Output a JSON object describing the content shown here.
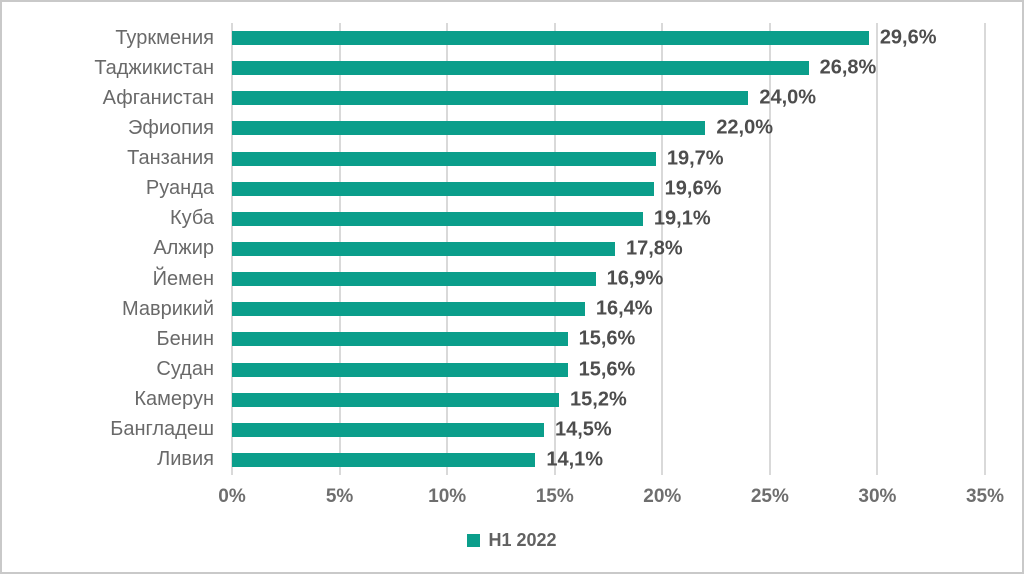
{
  "chart_data": {
    "type": "bar",
    "orientation": "horizontal",
    "title": "",
    "xlabel": "",
    "ylabel": "",
    "categories": [
      "Туркмения",
      "Таджикистан",
      "Афганистан",
      "Эфиопия",
      "Танзания",
      "Руанда",
      "Куба",
      "Алжир",
      "Йемен",
      "Маврикий",
      "Бенин",
      "Судан",
      "Камерун",
      "Бангладеш",
      "Ливия"
    ],
    "values": [
      29.6,
      26.8,
      24.0,
      22.0,
      19.7,
      19.6,
      19.1,
      17.8,
      16.9,
      16.4,
      15.6,
      15.6,
      15.2,
      14.5,
      14.1
    ],
    "value_labels": [
      "29,6%",
      "26,8%",
      "24,0%",
      "22,0%",
      "19,7%",
      "19,6%",
      "19,1%",
      "17,8%",
      "16,9%",
      "16,4%",
      "15,6%",
      "15,6%",
      "15,2%",
      "14,5%",
      "14,1%"
    ],
    "x_ticks_labels": [
      "0%",
      "5%",
      "10%",
      "15%",
      "20%",
      "25%",
      "30%",
      "35%"
    ],
    "x_ticks_values": [
      0,
      5,
      10,
      15,
      20,
      25,
      30,
      35
    ],
    "xlim": [
      0,
      35
    ],
    "grid": "vertical-on",
    "legend_position": "bottom-center",
    "legend": [
      {
        "label": "H1 2022",
        "color": "#0b9e8b"
      }
    ],
    "colors": {
      "bar": "#0b9e8b",
      "gridline": "#d9d9d9",
      "border": "#c9c9c9",
      "category_text": "#696969",
      "value_text": "#4d4d4d",
      "tick_text": "#6e6e6e",
      "background": "#ffffff"
    }
  }
}
